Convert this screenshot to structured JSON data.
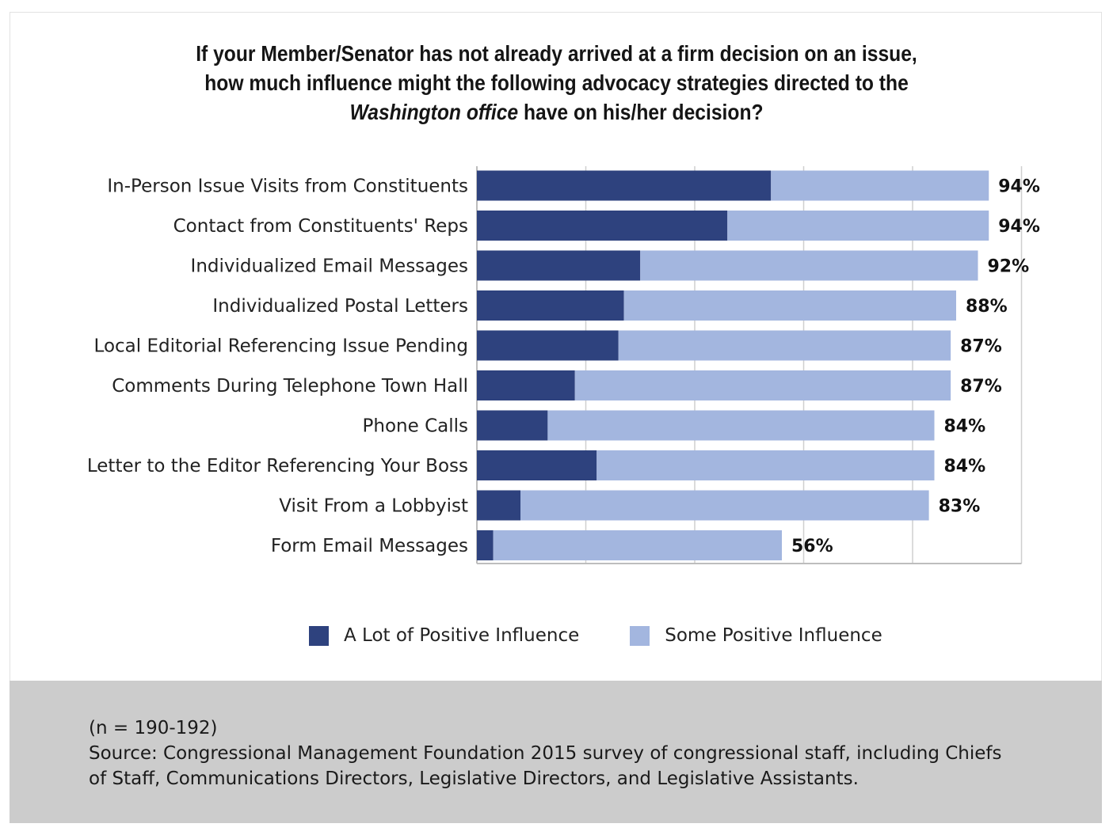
{
  "title": {
    "line1": "If your Member/Senator has not already arrived at a firm decision on an issue,",
    "line2": "how much influence might the following advocacy strategies directed to the",
    "line3_italic": "Washington office",
    "line3_rest": " have on his/her decision?"
  },
  "colors": {
    "a_lot": "#2e427e",
    "some": "#a3b6df",
    "grid": "#cfcfcf",
    "axis": "#bdbdbd"
  },
  "chart_data": {
    "type": "bar",
    "orientation": "horizontal",
    "stacked": true,
    "grid": true,
    "legend_position": "bottom",
    "xlim": [
      0,
      100
    ],
    "categories": [
      "In-Person Issue Visits from Constituents",
      "Contact from Constituents' Reps",
      "Individualized Email Messages",
      "Individualized Postal Letters",
      "Local Editorial Referencing Issue Pending",
      "Comments During Telephone Town Hall",
      "Phone Calls",
      "Letter to the Editor Referencing Your Boss",
      "Visit From a Lobbyist",
      "Form Email Messages"
    ],
    "series": [
      {
        "name": "A Lot of Positive Influence",
        "values": [
          54,
          46,
          30,
          27,
          26,
          18,
          13,
          22,
          8,
          3
        ]
      },
      {
        "name": "Some Positive Influence",
        "values": [
          40,
          48,
          62,
          61,
          61,
          69,
          71,
          62,
          75,
          53
        ]
      }
    ],
    "totals": [
      94,
      94,
      92,
      88,
      87,
      87,
      84,
      84,
      83,
      56
    ],
    "total_labels": [
      "94%",
      "94%",
      "92%",
      "88%",
      "87%",
      "87%",
      "84%",
      "84%",
      "83%",
      "56%"
    ]
  },
  "footer": {
    "n": "(n = 190-192)",
    "source_line1": "Source: Congressional Management Foundation 2015 survey of congressional staff, including Chiefs",
    "source_line2": "of Staff, Communications Directors, Legislative Directors, and Legislative Assistants."
  }
}
